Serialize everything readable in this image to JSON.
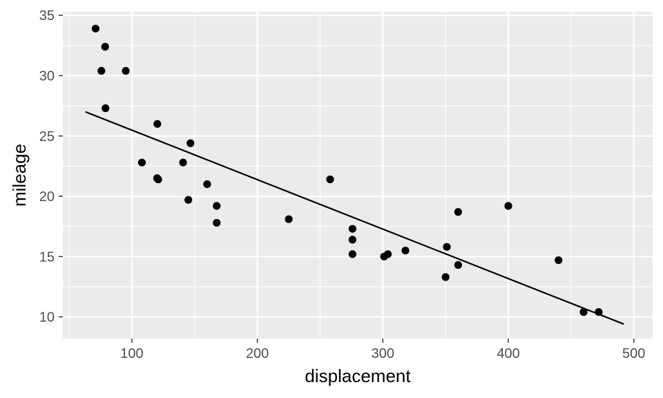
{
  "chart_data": {
    "type": "scatter",
    "title": "",
    "xlabel": "displacement",
    "ylabel": "mileage",
    "xlim": [
      45,
      515
    ],
    "ylim": [
      8.2,
      35.3
    ],
    "x_ticks": [
      100,
      200,
      300,
      400,
      500
    ],
    "y_ticks": [
      10,
      15,
      20,
      25,
      30,
      35
    ],
    "x_minor": [
      50,
      150,
      250,
      350,
      450
    ],
    "y_minor": [
      12.5,
      17.5,
      22.5,
      27.5,
      32.5
    ],
    "grid": true,
    "legend": "none",
    "colors": {
      "panel": "#ebebeb",
      "grid": "#ffffff",
      "point": "#000000",
      "line": "#000000"
    },
    "points": [
      {
        "x": 71.1,
        "y": 33.9
      },
      {
        "x": 75.7,
        "y": 30.4
      },
      {
        "x": 78.7,
        "y": 32.4
      },
      {
        "x": 79.0,
        "y": 27.3
      },
      {
        "x": 95.1,
        "y": 30.4
      },
      {
        "x": 108.0,
        "y": 22.8
      },
      {
        "x": 120.1,
        "y": 21.5
      },
      {
        "x": 120.3,
        "y": 26.0
      },
      {
        "x": 121.0,
        "y": 21.4
      },
      {
        "x": 140.8,
        "y": 22.8
      },
      {
        "x": 145.0,
        "y": 19.7
      },
      {
        "x": 146.7,
        "y": 24.4
      },
      {
        "x": 160.0,
        "y": 21.0
      },
      {
        "x": 167.6,
        "y": 19.2
      },
      {
        "x": 167.6,
        "y": 17.8
      },
      {
        "x": 225.0,
        "y": 18.1
      },
      {
        "x": 258.0,
        "y": 21.4
      },
      {
        "x": 275.8,
        "y": 16.4
      },
      {
        "x": 275.8,
        "y": 17.3
      },
      {
        "x": 275.8,
        "y": 15.2
      },
      {
        "x": 301.0,
        "y": 15.0
      },
      {
        "x": 304.0,
        "y": 15.2
      },
      {
        "x": 318.0,
        "y": 15.5
      },
      {
        "x": 350.0,
        "y": 13.3
      },
      {
        "x": 351.0,
        "y": 15.8
      },
      {
        "x": 360.0,
        "y": 18.7
      },
      {
        "x": 360.0,
        "y": 14.3
      },
      {
        "x": 400.0,
        "y": 19.2
      },
      {
        "x": 440.0,
        "y": 14.7
      },
      {
        "x": 460.0,
        "y": 10.4
      },
      {
        "x": 472.0,
        "y": 10.4
      }
    ],
    "fit_line": {
      "x": [
        63.0,
        492.0
      ],
      "y": [
        27.0,
        9.4
      ]
    }
  }
}
